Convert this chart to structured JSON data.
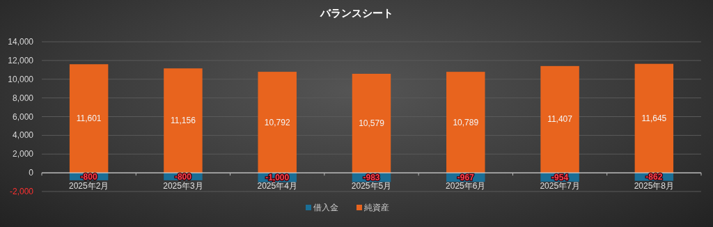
{
  "chart_data": {
    "type": "bar",
    "title": "バランスシート",
    "stacked": true,
    "categories": [
      "2025年2月",
      "2025年3月",
      "2025年4月",
      "2025年5月",
      "2025年6月",
      "2025年7月",
      "2025年8月"
    ],
    "series": [
      {
        "name": "借入金",
        "color": "#1a6e96",
        "values": [
          -800,
          -800,
          -1000,
          -983,
          -967,
          -954,
          -862
        ],
        "value_labels": [
          "-800",
          "-800",
          "-1,000",
          "-983",
          "-967",
          "-954",
          "-862"
        ]
      },
      {
        "name": "純資産",
        "color": "#e8641e",
        "values": [
          11601,
          11156,
          10792,
          10579,
          10789,
          11407,
          11645
        ],
        "value_labels": [
          "11,601",
          "11,156",
          "10,792",
          "10,579",
          "10,789",
          "11,407",
          "11,645"
        ]
      }
    ],
    "ylim": [
      -2000,
      14000
    ],
    "yticks": [
      {
        "value": -2000,
        "label": "-2,000"
      },
      0,
      {
        "value": 2000,
        "label": "2,000"
      },
      {
        "value": 4000,
        "label": "4,000"
      },
      {
        "value": 6000,
        "label": "6,000"
      },
      {
        "value": 8000,
        "label": "8,000"
      },
      {
        "value": 10000,
        "label": "10,000"
      },
      {
        "value": 12000,
        "label": "12,000"
      },
      {
        "value": 14000,
        "label": "14,000"
      }
    ],
    "grid": "y",
    "legend": "bottom"
  }
}
